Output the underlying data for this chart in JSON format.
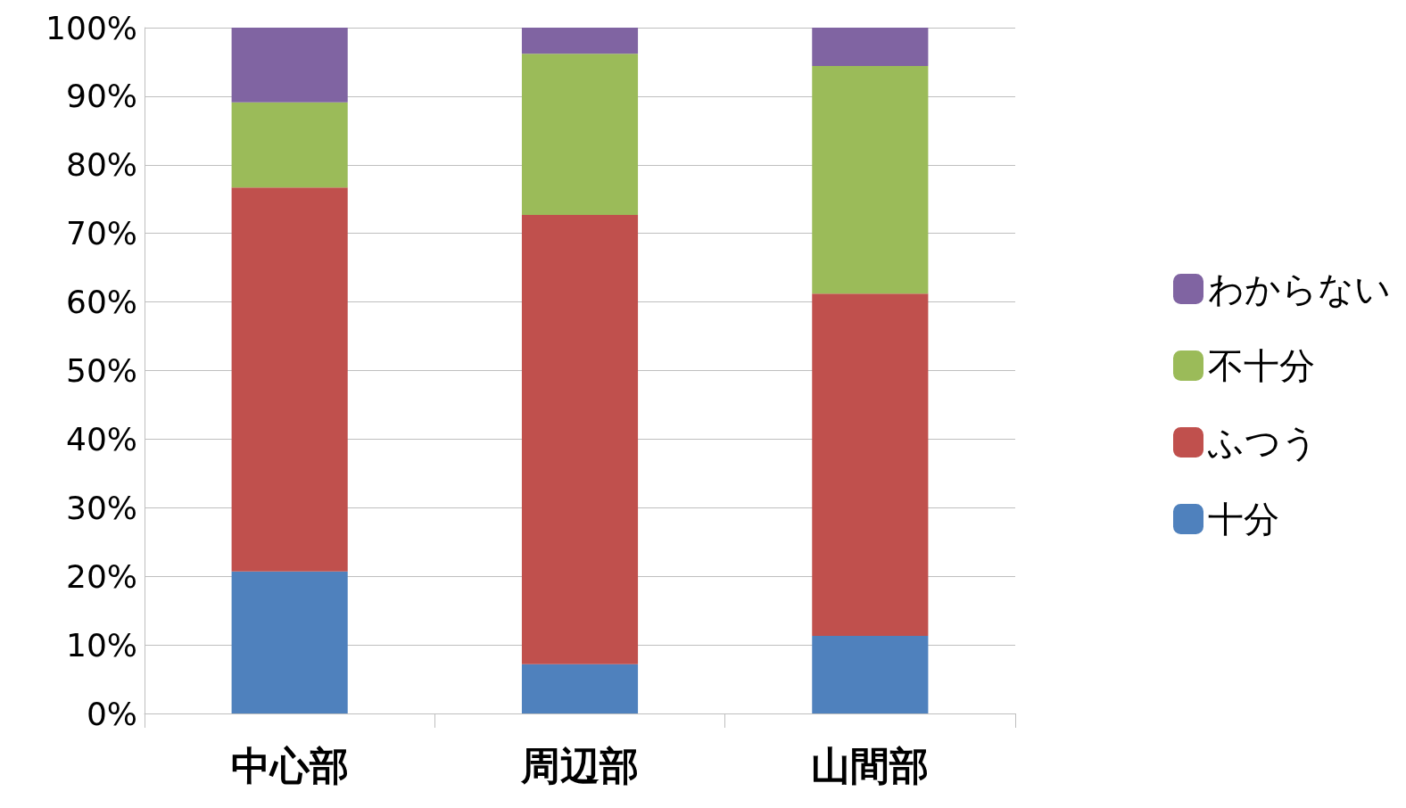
{
  "chart_data": {
    "type": "bar",
    "stacked": true,
    "categories": [
      "中心部",
      "周辺部",
      "山間部"
    ],
    "series": [
      {
        "name": "十分",
        "color": "#4f81bd",
        "values": [
          20.7,
          7.2,
          11.3
        ]
      },
      {
        "name": "ふつう",
        "color": "#c0504d",
        "values": [
          56.0,
          65.5,
          49.9
        ]
      },
      {
        "name": "不十分",
        "color": "#9bbb59",
        "values": [
          12.4,
          23.5,
          33.2
        ]
      },
      {
        "name": "わからない",
        "color": "#8064a2",
        "values": [
          10.9,
          3.8,
          5.6
        ]
      }
    ],
    "ylim": [
      0,
      100
    ],
    "yticks": [
      {
        "value": 0,
        "label": "0%"
      },
      {
        "value": 10,
        "label": "10%"
      },
      {
        "value": 20,
        "label": "20%"
      },
      {
        "value": 30,
        "label": "30%"
      },
      {
        "value": 40,
        "label": "40%"
      },
      {
        "value": 50,
        "label": "50%"
      },
      {
        "value": 60,
        "label": "60%"
      },
      {
        "value": 70,
        "label": "70%"
      },
      {
        "value": 80,
        "label": "80%"
      },
      {
        "value": 90,
        "label": "90%"
      },
      {
        "value": 100,
        "label": "100%"
      }
    ],
    "grid": "y",
    "legend": "right"
  }
}
